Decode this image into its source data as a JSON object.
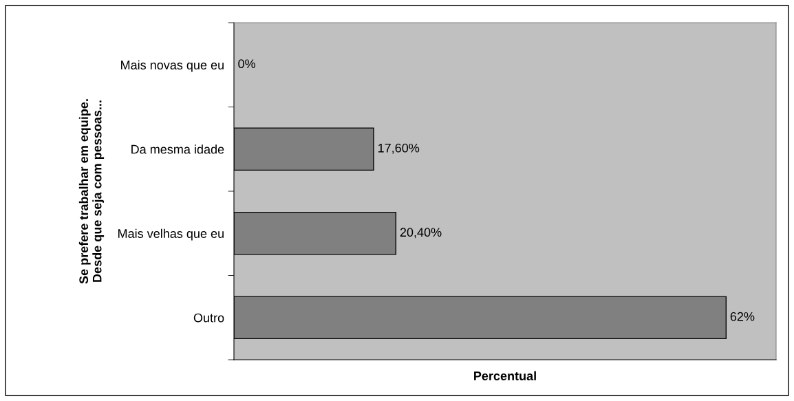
{
  "chart_data": {
    "type": "bar",
    "orientation": "horizontal",
    "ylabel": "Se prefere trabalhar em equipe.\nDesde que seja com pessoas...",
    "xlabel": "Percentual",
    "categories": [
      "Mais novas que eu",
      "Da mesma idade",
      "Mais velhas que eu",
      "Outro"
    ],
    "values": [
      0,
      17.6,
      20.4,
      62
    ],
    "value_labels": [
      "0%",
      "17,60%",
      "20,40%",
      "62%"
    ],
    "color": "#808080",
    "xlim": [
      0,
      68.3
    ],
    "tick_labels": "y",
    "grid": false,
    "legend": false
  }
}
